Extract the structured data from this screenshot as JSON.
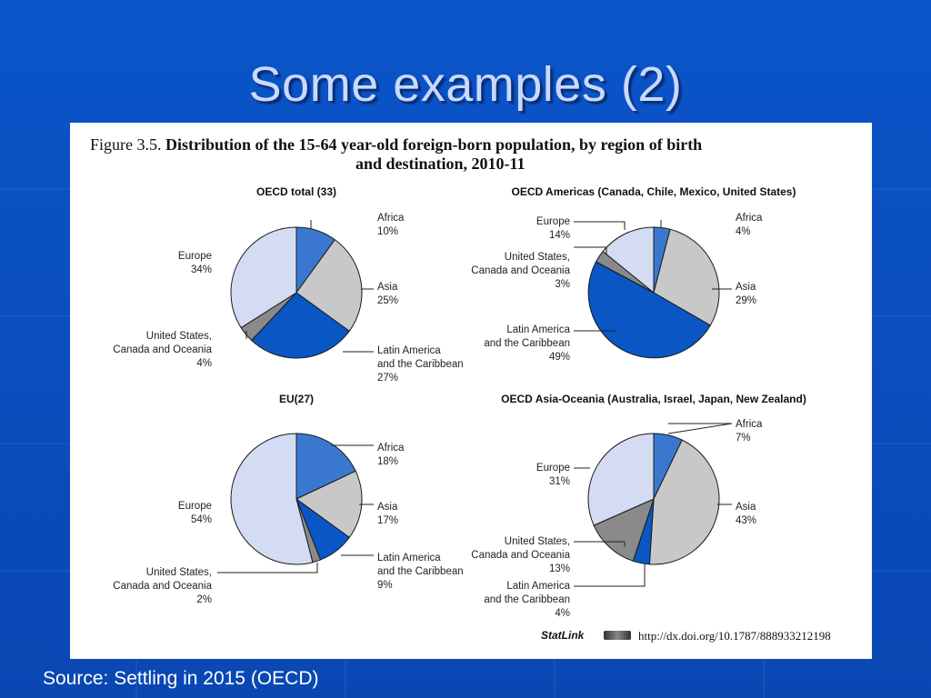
{
  "slide": {
    "title": "Some examples (2)",
    "source": "Source: Settling in 2015 (OECD)"
  },
  "figure": {
    "number": "Figure 3.5.",
    "title_line1": "Distribution of the 15-64 year-old foreign-born population, by region of birth",
    "title_line2": "and destination, 2010-11",
    "statlink_label": "StatLink",
    "statlink_url": "http://dx.doi.org/10.1787/888933212198"
  },
  "colors": {
    "Africa": "#3a78d0",
    "Asia": "#c8c8c8",
    "Latin America and the Caribbean": "#0a56c4",
    "United States, Canada and Oceania": "#8a8a8a",
    "Europe": "#d3dcf2"
  },
  "chart_data": [
    {
      "type": "pie",
      "title": "OECD total (33)",
      "slices": [
        {
          "name": "Africa",
          "label": [
            "Africa",
            "10%"
          ],
          "value": 10
        },
        {
          "name": "Asia",
          "label": [
            "Asia",
            "25%"
          ],
          "value": 25
        },
        {
          "name": "Latin America and the Caribbean",
          "label": [
            "Latin America",
            "and the Caribbean",
            "27%"
          ],
          "value": 27
        },
        {
          "name": "United States, Canada and Oceania",
          "label": [
            "United States,",
            "Canada and Oceania",
            "4%"
          ],
          "value": 4
        },
        {
          "name": "Europe",
          "label": [
            "Europe",
            "34%"
          ],
          "value": 34
        }
      ]
    },
    {
      "type": "pie",
      "title": "OECD Americas (Canada, Chile, Mexico, United States)",
      "slices": [
        {
          "name": "Africa",
          "label": [
            "Africa",
            "4%"
          ],
          "value": 4
        },
        {
          "name": "Asia",
          "label": [
            "Asia",
            "29%"
          ],
          "value": 29
        },
        {
          "name": "Latin America and the Caribbean",
          "label": [
            "Latin America",
            "and the Caribbean",
            "49%"
          ],
          "value": 49
        },
        {
          "name": "United States, Canada and Oceania",
          "label": [
            "United States,",
            "Canada and Oceania",
            "3%"
          ],
          "value": 3
        },
        {
          "name": "Europe",
          "label": [
            "Europe",
            "14%"
          ],
          "value": 14
        }
      ]
    },
    {
      "type": "pie",
      "title": "EU(27)",
      "slices": [
        {
          "name": "Africa",
          "label": [
            "Africa",
            "18%"
          ],
          "value": 18
        },
        {
          "name": "Asia",
          "label": [
            "Asia",
            "17%"
          ],
          "value": 17
        },
        {
          "name": "Latin America and the Caribbean",
          "label": [
            "Latin America",
            "and the Caribbean",
            "9%"
          ],
          "value": 9
        },
        {
          "name": "United States, Canada and Oceania",
          "label": [
            "United States,",
            "Canada and Oceania",
            "2%"
          ],
          "value": 2
        },
        {
          "name": "Europe",
          "label": [
            "Europe",
            "54%"
          ],
          "value": 54
        }
      ]
    },
    {
      "type": "pie",
      "title": "OECD Asia-Oceania (Australia, Israel, Japan, New Zealand)",
      "slices": [
        {
          "name": "Africa",
          "label": [
            "Africa",
            "7%"
          ],
          "value": 7
        },
        {
          "name": "Asia",
          "label": [
            "Asia",
            "43%"
          ],
          "value": 43
        },
        {
          "name": "Latin America and the Caribbean",
          "label": [
            "Latin America",
            "and the Caribbean",
            "4%"
          ],
          "value": 4
        },
        {
          "name": "United States, Canada and Oceania",
          "label": [
            "United States,",
            "Canada and Oceania",
            "13%"
          ],
          "value": 13
        },
        {
          "name": "Europe",
          "label": [
            "Europe",
            "31%"
          ],
          "value": 31
        }
      ]
    }
  ]
}
